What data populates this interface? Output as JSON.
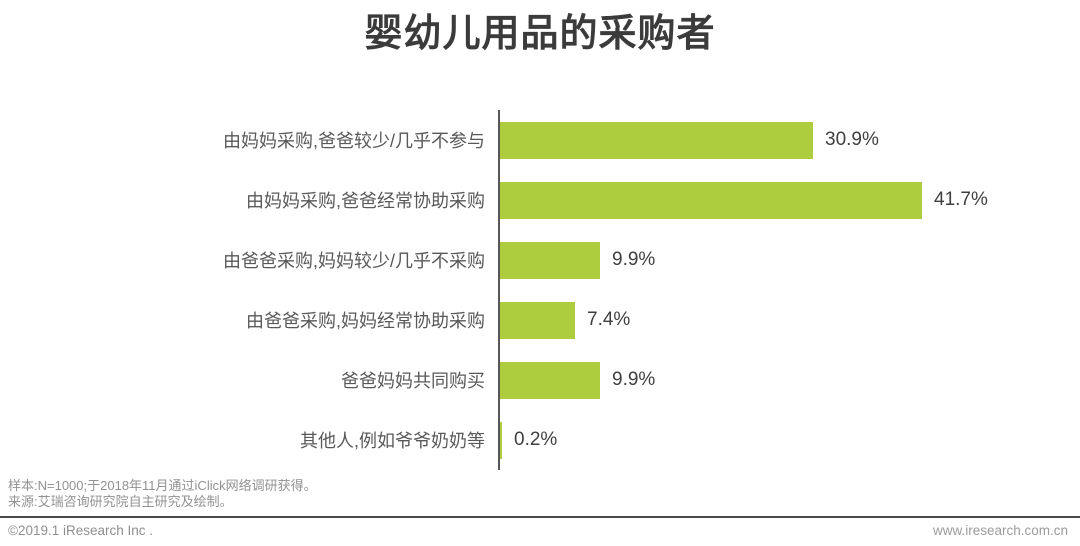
{
  "page": {
    "title": "婴幼儿用品的采购者"
  },
  "chart_data": {
    "type": "bar",
    "orientation": "horizontal",
    "title": "婴幼儿用品的采购者",
    "categories": [
      "由妈妈采购,爸爸较少/几乎不参与",
      "由妈妈采购,爸爸经常协助采购",
      "由爸爸采购,妈妈较少/几乎不采购",
      "由爸爸采购,妈妈经常协助采购",
      "爸爸妈妈共同购买",
      "其他人,例如爷爷奶奶等"
    ],
    "values": [
      30.9,
      41.7,
      9.9,
      7.4,
      9.9,
      0.2
    ],
    "value_labels": [
      "30.9%",
      "41.7%",
      "9.9%",
      "7.4%",
      "9.9%",
      "0.2%"
    ],
    "xlabel": "",
    "ylabel": "",
    "xlim": [
      0,
      46
    ],
    "grid": false,
    "legend": false,
    "bar_color": "#aecd3e",
    "axis_color": "#54565a",
    "label_color": "#595959",
    "value_color": "#3f3f3f"
  },
  "footer": {
    "sample_note": "样本:N=1000;于2018年11月通过iClick网络调研获得。",
    "source_note": "来源:艾瑞咨询研究院自主研究及绘制。",
    "copyright": "©2019.1 iResearch Inc .",
    "website": "www.iresearch.com.cn"
  }
}
